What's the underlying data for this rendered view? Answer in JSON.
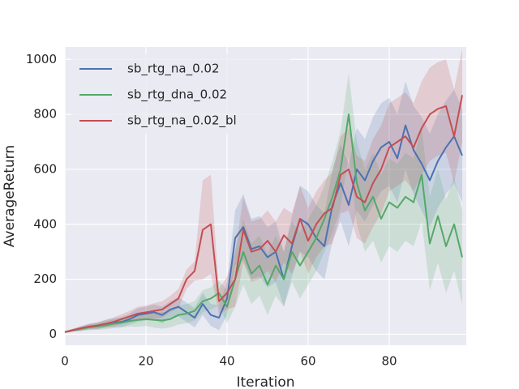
{
  "chart_data": {
    "type": "line",
    "x_label": "Iteration",
    "y_label": "AverageReturn",
    "x": [
      0,
      2,
      4,
      6,
      8,
      10,
      12,
      14,
      16,
      18,
      20,
      22,
      24,
      26,
      28,
      30,
      32,
      34,
      36,
      38,
      40,
      42,
      44,
      46,
      48,
      50,
      52,
      54,
      56,
      58,
      60,
      62,
      64,
      66,
      68,
      70,
      72,
      74,
      76,
      78,
      80,
      82,
      84,
      86,
      88,
      90,
      92,
      94,
      96,
      98
    ],
    "xlim": [
      0,
      99
    ],
    "xticks": [
      0,
      20,
      40,
      60,
      80
    ],
    "ylim": [
      -40,
      1045
    ],
    "yticks": [
      0,
      200,
      400,
      600,
      800,
      1000
    ],
    "grid": true,
    "legend": "upper left",
    "series": [
      {
        "name": "sb_rtg_na_0.02",
        "color": "#4c72b0",
        "values": [
          8,
          15,
          20,
          28,
          30,
          38,
          42,
          45,
          55,
          70,
          75,
          80,
          70,
          90,
          100,
          80,
          60,
          110,
          70,
          60,
          130,
          350,
          390,
          310,
          320,
          280,
          300,
          200,
          320,
          420,
          400,
          350,
          320,
          470,
          550,
          470,
          600,
          560,
          630,
          680,
          700,
          640,
          760,
          670,
          620,
          560,
          630,
          680,
          720,
          650
        ],
        "lower": [
          5,
          10,
          12,
          18,
          18,
          24,
          26,
          27,
          35,
          45,
          50,
          52,
          40,
          60,
          65,
          45,
          25,
          70,
          30,
          15,
          70,
          250,
          270,
          200,
          210,
          170,
          190,
          100,
          210,
          300,
          280,
          230,
          200,
          340,
          410,
          320,
          450,
          410,
          470,
          520,
          540,
          480,
          600,
          510,
          450,
          390,
          460,
          510,
          550,
          480
        ],
        "upper": [
          11,
          20,
          28,
          38,
          42,
          52,
          58,
          63,
          75,
          95,
          100,
          108,
          100,
          120,
          135,
          115,
          95,
          150,
          110,
          105,
          190,
          450,
          510,
          420,
          430,
          390,
          410,
          300,
          430,
          540,
          520,
          470,
          440,
          600,
          690,
          620,
          750,
          710,
          790,
          840,
          860,
          800,
          920,
          830,
          790,
          730,
          800,
          850,
          890,
          820
        ]
      },
      {
        "name": "sb_rtg_dna_0.02",
        "color": "#55a868",
        "values": [
          8,
          14,
          20,
          25,
          28,
          32,
          38,
          42,
          48,
          52,
          55,
          52,
          50,
          55,
          70,
          75,
          85,
          120,
          130,
          150,
          100,
          200,
          300,
          220,
          250,
          180,
          250,
          200,
          300,
          250,
          300,
          350,
          420,
          500,
          600,
          800,
          550,
          450,
          500,
          420,
          480,
          460,
          500,
          480,
          580,
          330,
          430,
          320,
          400,
          280
        ],
        "lower": [
          5,
          9,
          12,
          15,
          16,
          18,
          22,
          24,
          28,
          27,
          30,
          24,
          20,
          25,
          35,
          40,
          50,
          80,
          90,
          105,
          40,
          100,
          180,
          110,
          140,
          70,
          140,
          100,
          190,
          130,
          180,
          230,
          300,
          370,
          460,
          650,
          400,
          300,
          340,
          260,
          320,
          300,
          340,
          320,
          410,
          160,
          260,
          150,
          230,
          110
        ],
        "upper": [
          11,
          19,
          28,
          35,
          40,
          46,
          54,
          60,
          68,
          77,
          80,
          80,
          80,
          85,
          105,
          110,
          120,
          160,
          170,
          195,
          160,
          300,
          420,
          330,
          360,
          290,
          360,
          300,
          410,
          370,
          420,
          470,
          540,
          630,
          740,
          950,
          700,
          600,
          660,
          580,
          640,
          620,
          660,
          640,
          750,
          500,
          600,
          490,
          570,
          450
        ]
      },
      {
        "name": "sb_rtg_na_0.02_bl",
        "color": "#c44e52",
        "values": [
          8,
          15,
          22,
          28,
          32,
          38,
          45,
          55,
          65,
          75,
          80,
          85,
          90,
          110,
          130,
          200,
          230,
          380,
          400,
          120,
          150,
          200,
          380,
          300,
          310,
          340,
          300,
          360,
          330,
          420,
          340,
          400,
          440,
          460,
          580,
          600,
          500,
          480,
          550,
          600,
          680,
          700,
          720,
          680,
          750,
          800,
          820,
          830,
          720,
          870
        ],
        "lower": [
          5,
          10,
          14,
          18,
          20,
          24,
          29,
          37,
          45,
          50,
          55,
          57,
          60,
          80,
          95,
          165,
          195,
          200,
          220,
          75,
          90,
          100,
          260,
          190,
          200,
          230,
          190,
          260,
          220,
          300,
          220,
          280,
          320,
          330,
          440,
          450,
          350,
          330,
          390,
          440,
          520,
          540,
          560,
          520,
          580,
          630,
          650,
          660,
          550,
          700
        ],
        "upper": [
          11,
          20,
          30,
          38,
          44,
          52,
          61,
          73,
          85,
          100,
          105,
          113,
          120,
          140,
          165,
          235,
          265,
          560,
          580,
          165,
          210,
          300,
          500,
          410,
          420,
          450,
          410,
          460,
          440,
          540,
          460,
          520,
          560,
          590,
          720,
          750,
          650,
          630,
          710,
          760,
          840,
          860,
          880,
          840,
          920,
          970,
          990,
          1000,
          890,
          1040
        ]
      }
    ]
  }
}
